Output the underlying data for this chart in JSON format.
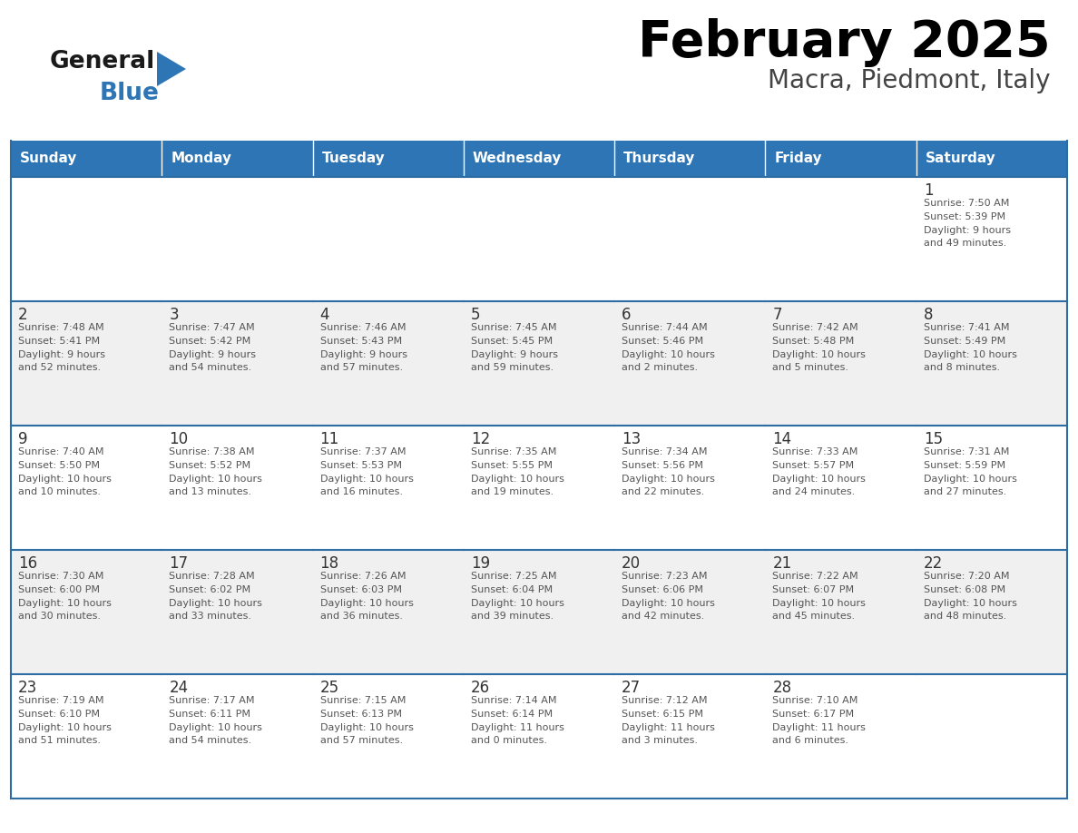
{
  "title": "February 2025",
  "subtitle": "Macra, Piedmont, Italy",
  "header_bg": "#2e75b6",
  "header_text_color": "#ffffff",
  "days_of_week": [
    "Sunday",
    "Monday",
    "Tuesday",
    "Wednesday",
    "Thursday",
    "Friday",
    "Saturday"
  ],
  "cell_bg_white": "#ffffff",
  "cell_bg_gray": "#f0f0f0",
  "border_color": "#2e6da4",
  "day_num_color": "#333333",
  "text_color": "#555555",
  "title_color": "#000000",
  "subtitle_color": "#444444",
  "logo_general_color": "#1a1a1a",
  "logo_blue_color": "#2e75b6",
  "logo_triangle_color": "#2e75b6",
  "calendar_data": [
    [
      {
        "day": null,
        "sunrise": null,
        "sunset": null,
        "daylight": null
      },
      {
        "day": null,
        "sunrise": null,
        "sunset": null,
        "daylight": null
      },
      {
        "day": null,
        "sunrise": null,
        "sunset": null,
        "daylight": null
      },
      {
        "day": null,
        "sunrise": null,
        "sunset": null,
        "daylight": null
      },
      {
        "day": null,
        "sunrise": null,
        "sunset": null,
        "daylight": null
      },
      {
        "day": null,
        "sunrise": null,
        "sunset": null,
        "daylight": null
      },
      {
        "day": 1,
        "sunrise": "7:50 AM",
        "sunset": "5:39 PM",
        "daylight": "9 hours and 49 minutes."
      }
    ],
    [
      {
        "day": 2,
        "sunrise": "7:48 AM",
        "sunset": "5:41 PM",
        "daylight": "9 hours and 52 minutes."
      },
      {
        "day": 3,
        "sunrise": "7:47 AM",
        "sunset": "5:42 PM",
        "daylight": "9 hours and 54 minutes."
      },
      {
        "day": 4,
        "sunrise": "7:46 AM",
        "sunset": "5:43 PM",
        "daylight": "9 hours and 57 minutes."
      },
      {
        "day": 5,
        "sunrise": "7:45 AM",
        "sunset": "5:45 PM",
        "daylight": "9 hours and 59 minutes."
      },
      {
        "day": 6,
        "sunrise": "7:44 AM",
        "sunset": "5:46 PM",
        "daylight": "10 hours and 2 minutes."
      },
      {
        "day": 7,
        "sunrise": "7:42 AM",
        "sunset": "5:48 PM",
        "daylight": "10 hours and 5 minutes."
      },
      {
        "day": 8,
        "sunrise": "7:41 AM",
        "sunset": "5:49 PM",
        "daylight": "10 hours and 8 minutes."
      }
    ],
    [
      {
        "day": 9,
        "sunrise": "7:40 AM",
        "sunset": "5:50 PM",
        "daylight": "10 hours and 10 minutes."
      },
      {
        "day": 10,
        "sunrise": "7:38 AM",
        "sunset": "5:52 PM",
        "daylight": "10 hours and 13 minutes."
      },
      {
        "day": 11,
        "sunrise": "7:37 AM",
        "sunset": "5:53 PM",
        "daylight": "10 hours and 16 minutes."
      },
      {
        "day": 12,
        "sunrise": "7:35 AM",
        "sunset": "5:55 PM",
        "daylight": "10 hours and 19 minutes."
      },
      {
        "day": 13,
        "sunrise": "7:34 AM",
        "sunset": "5:56 PM",
        "daylight": "10 hours and 22 minutes."
      },
      {
        "day": 14,
        "sunrise": "7:33 AM",
        "sunset": "5:57 PM",
        "daylight": "10 hours and 24 minutes."
      },
      {
        "day": 15,
        "sunrise": "7:31 AM",
        "sunset": "5:59 PM",
        "daylight": "10 hours and 27 minutes."
      }
    ],
    [
      {
        "day": 16,
        "sunrise": "7:30 AM",
        "sunset": "6:00 PM",
        "daylight": "10 hours and 30 minutes."
      },
      {
        "day": 17,
        "sunrise": "7:28 AM",
        "sunset": "6:02 PM",
        "daylight": "10 hours and 33 minutes."
      },
      {
        "day": 18,
        "sunrise": "7:26 AM",
        "sunset": "6:03 PM",
        "daylight": "10 hours and 36 minutes."
      },
      {
        "day": 19,
        "sunrise": "7:25 AM",
        "sunset": "6:04 PM",
        "daylight": "10 hours and 39 minutes."
      },
      {
        "day": 20,
        "sunrise": "7:23 AM",
        "sunset": "6:06 PM",
        "daylight": "10 hours and 42 minutes."
      },
      {
        "day": 21,
        "sunrise": "7:22 AM",
        "sunset": "6:07 PM",
        "daylight": "10 hours and 45 minutes."
      },
      {
        "day": 22,
        "sunrise": "7:20 AM",
        "sunset": "6:08 PM",
        "daylight": "10 hours and 48 minutes."
      }
    ],
    [
      {
        "day": 23,
        "sunrise": "7:19 AM",
        "sunset": "6:10 PM",
        "daylight": "10 hours and 51 minutes."
      },
      {
        "day": 24,
        "sunrise": "7:17 AM",
        "sunset": "6:11 PM",
        "daylight": "10 hours and 54 minutes."
      },
      {
        "day": 25,
        "sunrise": "7:15 AM",
        "sunset": "6:13 PM",
        "daylight": "10 hours and 57 minutes."
      },
      {
        "day": 26,
        "sunrise": "7:14 AM",
        "sunset": "6:14 PM",
        "daylight": "11 hours and 0 minutes."
      },
      {
        "day": 27,
        "sunrise": "7:12 AM",
        "sunset": "6:15 PM",
        "daylight": "11 hours and 3 minutes."
      },
      {
        "day": 28,
        "sunrise": "7:10 AM",
        "sunset": "6:17 PM",
        "daylight": "11 hours and 6 minutes."
      },
      {
        "day": null,
        "sunrise": null,
        "sunset": null,
        "daylight": null
      }
    ]
  ]
}
